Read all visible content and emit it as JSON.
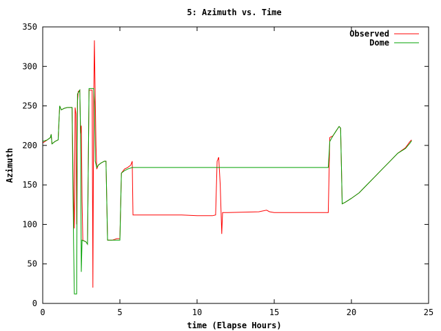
{
  "chart_data": {
    "type": "line",
    "title": "5: Azimuth vs. Time",
    "xlabel": "time (Elapse Hours)",
    "ylabel": "Azimuth",
    "xlim": [
      0,
      25
    ],
    "ylim": [
      0,
      350
    ],
    "xticks": [
      0,
      5,
      10,
      15,
      20,
      25
    ],
    "yticks": [
      0,
      50,
      100,
      150,
      200,
      250,
      300,
      350
    ],
    "legend_position": "top-right",
    "grid": false,
    "series": [
      {
        "name": "Observed",
        "color": "#ff0000",
        "points": [
          [
            0.0,
            203
          ],
          [
            0.3,
            207
          ],
          [
            0.5,
            210
          ],
          [
            0.55,
            214
          ],
          [
            0.6,
            202
          ],
          [
            0.8,
            205
          ],
          [
            1.0,
            207
          ],
          [
            1.1,
            250
          ],
          [
            1.2,
            245
          ],
          [
            1.4,
            247
          ],
          [
            1.6,
            248
          ],
          [
            1.9,
            248
          ],
          [
            2.0,
            130
          ],
          [
            2.05,
            95
          ],
          [
            2.1,
            248
          ],
          [
            2.15,
            240
          ],
          [
            2.2,
            100
          ],
          [
            2.25,
            255
          ],
          [
            2.3,
            268
          ],
          [
            2.4,
            270
          ],
          [
            2.45,
            215
          ],
          [
            2.5,
            225
          ],
          [
            2.55,
            130
          ],
          [
            2.6,
            80
          ],
          [
            2.8,
            78
          ],
          [
            2.9,
            75
          ],
          [
            3.0,
            270
          ],
          [
            3.2,
            270
          ],
          [
            3.25,
            20
          ],
          [
            3.3,
            250
          ],
          [
            3.35,
            333
          ],
          [
            3.4,
            260
          ],
          [
            3.45,
            200
          ],
          [
            3.5,
            170
          ],
          [
            3.6,
            175
          ],
          [
            3.8,
            178
          ],
          [
            4.0,
            180
          ],
          [
            4.1,
            180
          ],
          [
            4.2,
            80
          ],
          [
            4.5,
            80
          ],
          [
            4.8,
            82
          ],
          [
            5.0,
            82
          ],
          [
            5.1,
            165
          ],
          [
            5.3,
            170
          ],
          [
            5.5,
            172
          ],
          [
            5.7,
            175
          ],
          [
            5.8,
            180
          ],
          [
            5.85,
            112
          ],
          [
            7.0,
            112
          ],
          [
            9.0,
            112
          ],
          [
            10.0,
            111
          ],
          [
            11.0,
            111
          ],
          [
            11.2,
            112
          ],
          [
            11.3,
            180
          ],
          [
            11.4,
            185
          ],
          [
            11.5,
            150
          ],
          [
            11.6,
            88
          ],
          [
            11.65,
            115
          ],
          [
            12.0,
            115
          ],
          [
            14.0,
            116
          ],
          [
            14.5,
            118
          ],
          [
            14.7,
            116
          ],
          [
            15.0,
            115
          ],
          [
            16.0,
            115
          ],
          [
            17.5,
            115
          ],
          [
            18.5,
            115
          ],
          [
            18.6,
            210
          ],
          [
            18.8,
            212
          ],
          [
            19.0,
            218
          ],
          [
            19.2,
            224
          ],
          [
            19.3,
            222
          ],
          [
            19.4,
            126
          ],
          [
            19.6,
            128
          ],
          [
            20.0,
            133
          ],
          [
            20.5,
            140
          ],
          [
            21.0,
            150
          ],
          [
            21.5,
            160
          ],
          [
            22.0,
            170
          ],
          [
            22.5,
            180
          ],
          [
            23.0,
            190
          ],
          [
            23.5,
            197
          ],
          [
            23.8,
            205
          ],
          [
            23.9,
            207
          ]
        ]
      },
      {
        "name": "Dome",
        "color": "#00a000",
        "points": [
          [
            0.0,
            205
          ],
          [
            0.3,
            207
          ],
          [
            0.5,
            210
          ],
          [
            0.55,
            214
          ],
          [
            0.6,
            202
          ],
          [
            0.8,
            205
          ],
          [
            1.0,
            207
          ],
          [
            1.1,
            250
          ],
          [
            1.2,
            245
          ],
          [
            1.4,
            247
          ],
          [
            1.6,
            248
          ],
          [
            1.9,
            248
          ],
          [
            2.0,
            75
          ],
          [
            2.05,
            12
          ],
          [
            2.2,
            12
          ],
          [
            2.25,
            265
          ],
          [
            2.4,
            270
          ],
          [
            2.45,
            215
          ],
          [
            2.5,
            40
          ],
          [
            2.55,
            80
          ],
          [
            2.8,
            78
          ],
          [
            2.9,
            75
          ],
          [
            3.0,
            272
          ],
          [
            3.3,
            272
          ],
          [
            3.35,
            255
          ],
          [
            3.4,
            180
          ],
          [
            3.5,
            172
          ],
          [
            3.6,
            175
          ],
          [
            3.8,
            178
          ],
          [
            4.0,
            180
          ],
          [
            4.1,
            180
          ],
          [
            4.2,
            80
          ],
          [
            4.5,
            80
          ],
          [
            4.8,
            80
          ],
          [
            5.0,
            80
          ],
          [
            5.1,
            165
          ],
          [
            5.3,
            168
          ],
          [
            5.5,
            170
          ],
          [
            5.8,
            172
          ],
          [
            7.0,
            172
          ],
          [
            10.0,
            172
          ],
          [
            12.0,
            172
          ],
          [
            15.0,
            172
          ],
          [
            17.0,
            172
          ],
          [
            18.5,
            172
          ],
          [
            18.6,
            205
          ],
          [
            18.8,
            212
          ],
          [
            19.0,
            218
          ],
          [
            19.2,
            224
          ],
          [
            19.3,
            222
          ],
          [
            19.4,
            126
          ],
          [
            19.6,
            128
          ],
          [
            20.0,
            133
          ],
          [
            20.5,
            140
          ],
          [
            21.0,
            150
          ],
          [
            21.5,
            160
          ],
          [
            22.0,
            170
          ],
          [
            22.5,
            180
          ],
          [
            23.0,
            190
          ],
          [
            23.5,
            196
          ],
          [
            23.8,
            203
          ],
          [
            23.9,
            206
          ]
        ]
      }
    ]
  }
}
